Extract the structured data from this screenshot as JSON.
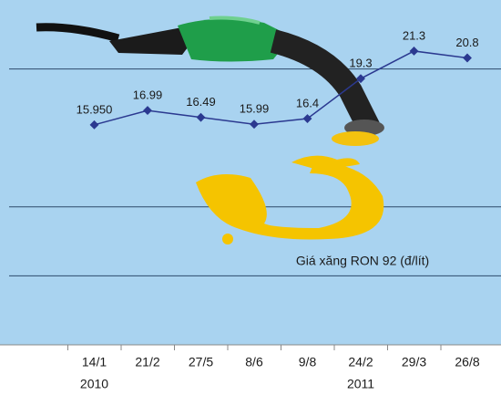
{
  "chart_data": {
    "type": "line",
    "categories": [
      "14/1",
      "21/2",
      "27/5",
      "8/6",
      "9/8",
      "24/2",
      "29/3",
      "26/8"
    ],
    "year_labels": [
      {
        "index": 0,
        "label": "2010"
      },
      {
        "index": 5,
        "label": "2011"
      }
    ],
    "series": [
      {
        "color": "#2b3990",
        "values": [
          15.95,
          16.99,
          16.49,
          15.99,
          16.4,
          19.3,
          21.3,
          20.8
        ],
        "value_labels": [
          "15.950",
          "16.99",
          "16.49",
          "15.99",
          "16.4",
          "19.3",
          "21.3",
          "20.8"
        ]
      }
    ],
    "annotation": "Giá xăng RON 92 (đ/lít)",
    "ylim": [
      0,
      25
    ],
    "yticks": [
      5,
      10,
      20
    ],
    "grid": true,
    "background": "#a9d3f0"
  }
}
